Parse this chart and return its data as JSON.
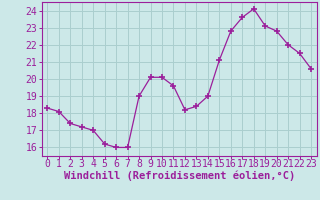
{
  "x": [
    0,
    1,
    2,
    3,
    4,
    5,
    6,
    7,
    8,
    9,
    10,
    11,
    12,
    13,
    14,
    15,
    16,
    17,
    18,
    19,
    20,
    21,
    22,
    23
  ],
  "y": [
    18.3,
    18.1,
    17.4,
    17.2,
    17.0,
    16.2,
    16.0,
    16.0,
    19.0,
    20.1,
    20.1,
    19.6,
    18.2,
    18.4,
    19.0,
    21.1,
    22.8,
    23.6,
    24.1,
    23.1,
    22.8,
    22.0,
    21.5,
    20.6
  ],
  "line_color": "#9b1f9b",
  "marker": "+",
  "marker_size": 4,
  "bg_color": "#cce8e8",
  "grid_color": "#aacece",
  "xlabel": "Windchill (Refroidissement éolien,°C)",
  "ylabel": "",
  "xlim": [
    -0.5,
    23.5
  ],
  "ylim": [
    15.5,
    24.5
  ],
  "yticks": [
    16,
    17,
    18,
    19,
    20,
    21,
    22,
    23,
    24
  ],
  "xticks": [
    0,
    1,
    2,
    3,
    4,
    5,
    6,
    7,
    8,
    9,
    10,
    11,
    12,
    13,
    14,
    15,
    16,
    17,
    18,
    19,
    20,
    21,
    22,
    23
  ],
  "tick_color": "#9b1f9b",
  "tick_label_color": "#9b1f9b",
  "spine_color": "#9b1f9b",
  "label_fontsize": 7.5,
  "tick_fontsize": 7
}
